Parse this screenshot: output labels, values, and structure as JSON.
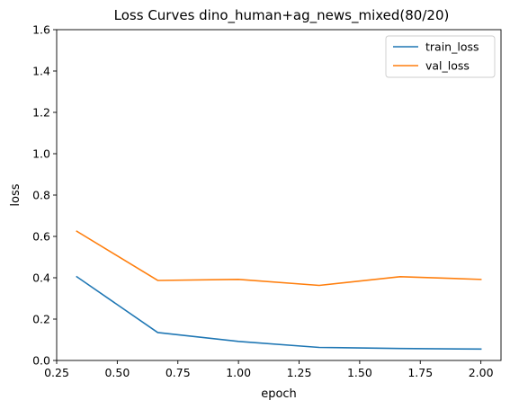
{
  "chart_data": {
    "type": "line",
    "title": "Loss Curves dino_human+ag_news_mixed(80/20)",
    "xlabel": "epoch",
    "ylabel": "loss",
    "xlim": [
      0.25,
      2.083
    ],
    "ylim": [
      0,
      1.6
    ],
    "xticks": [
      0.25,
      0.5,
      0.75,
      1.0,
      1.25,
      1.5,
      1.75,
      2.0
    ],
    "xtick_labels": [
      "0.25",
      "0.50",
      "0.75",
      "1.00",
      "1.25",
      "1.50",
      "1.75",
      "2.00"
    ],
    "yticks": [
      0,
      0.2,
      0.4,
      0.6,
      0.8,
      1.0,
      1.2,
      1.4,
      1.6
    ],
    "ytick_labels": [
      "0.0",
      "0.2",
      "0.4",
      "0.6",
      "0.8",
      "1.0",
      "1.2",
      "1.4",
      "1.6"
    ],
    "grid": false,
    "legend_position": "top-right",
    "x": [
      0.333,
      0.667,
      1.0,
      1.333,
      1.667,
      2.0
    ],
    "series": [
      {
        "name": "train_loss",
        "color": "#1f77b4",
        "values": [
          0.405,
          0.135,
          0.092,
          0.063,
          0.058,
          0.055
        ]
      },
      {
        "name": "val_loss",
        "color": "#ff7f0e",
        "values": [
          0.625,
          0.387,
          0.392,
          0.363,
          0.405,
          0.392
        ]
      }
    ]
  }
}
